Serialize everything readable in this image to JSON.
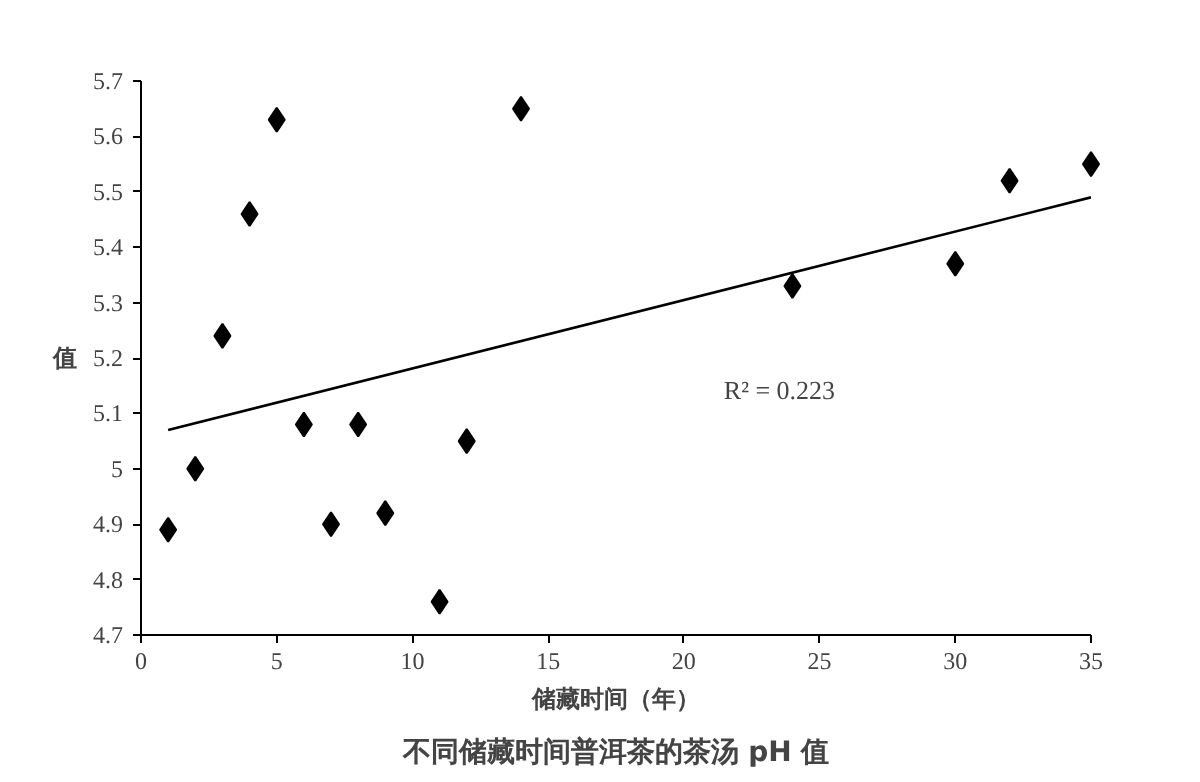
{
  "chart_data": {
    "type": "scatter",
    "title": "不同储藏时间普洱茶的茶汤 pH 值",
    "xlabel": "储藏时间（年）",
    "ylabel": "值",
    "series": [
      {
        "color": "#000000",
        "marker": "diamond",
        "x": [
          1,
          2,
          3,
          4,
          5,
          6,
          7,
          8,
          9,
          11,
          12,
          14,
          24,
          30,
          32,
          35
        ],
        "values": [
          4.89,
          5.0,
          5.24,
          5.46,
          5.63,
          5.08,
          4.9,
          5.08,
          4.92,
          4.76,
          5.05,
          5.65,
          5.33,
          5.37,
          5.52,
          5.55
        ]
      },
      {
        "type": "line",
        "color": "#000000",
        "line_style": "solid",
        "x": [
          1,
          35
        ],
        "values": [
          5.07,
          5.49
        ]
      }
    ],
    "annotations": [
      "R² = 0.223"
    ],
    "xlim": [
      0,
      35
    ],
    "ylim": [
      4.7,
      5.7
    ],
    "xticks": [
      0,
      5,
      10,
      15,
      20,
      25,
      30,
      35
    ],
    "yticks": [
      4.7,
      4.8,
      4.9,
      5,
      5.1,
      5.2,
      5.3,
      5.4,
      5.5,
      5.6,
      5.7
    ],
    "grid": false
  }
}
